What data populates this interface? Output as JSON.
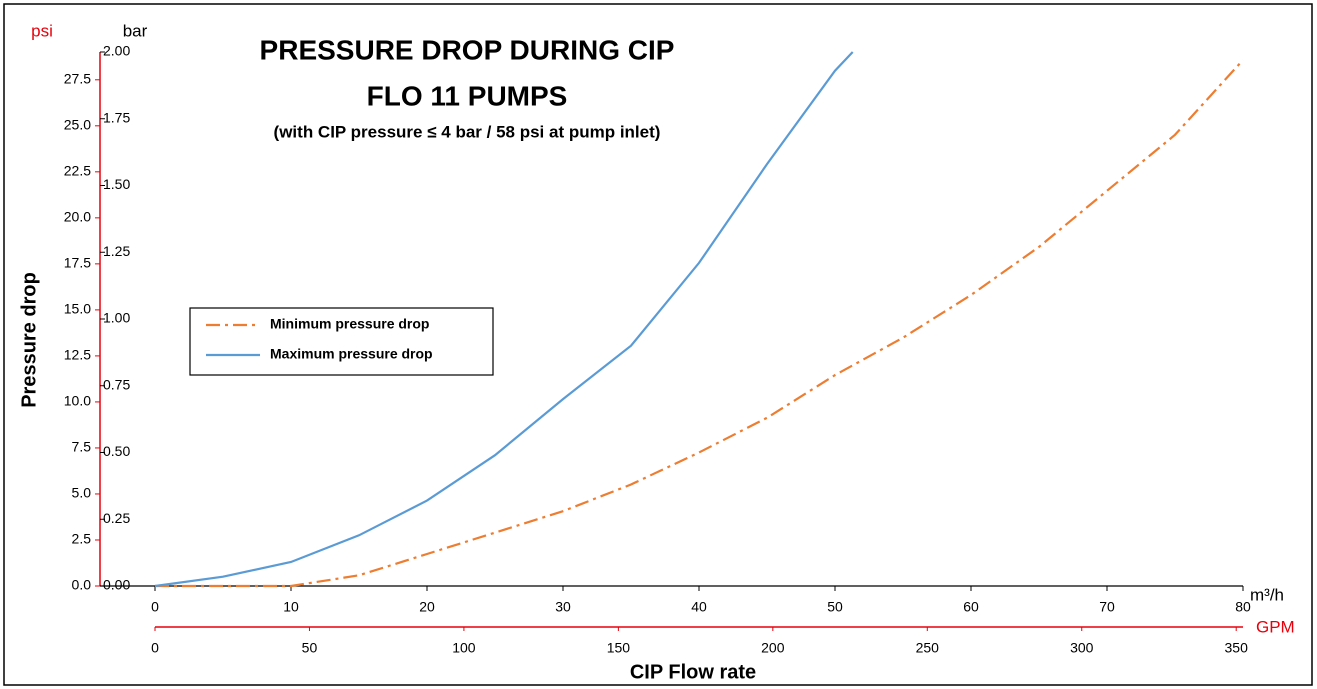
{
  "chart_data": {
    "type": "line",
    "title": [
      "PRESSURE DROP DURING CIP",
      "FLO 11 PUMPS"
    ],
    "subtitle": "(with CIP pressure ≤ 4 bar / 58 psi at pump inlet)",
    "ylabel": "Pressure drop",
    "xlabel": "CIP Flow rate",
    "yunit": "bar",
    "y2unit": "psi",
    "xunit": "m³/h",
    "x2unit": "GPM",
    "y2color": "#e8000b",
    "x2color": "#e8000b",
    "legend": "left",
    "xlim": [
      0,
      80
    ],
    "xticks": [
      0,
      10,
      20,
      30,
      40,
      50,
      60,
      70,
      80
    ],
    "x2lim": [
      0,
      352.2
    ],
    "x2ticks": [
      0,
      50,
      100,
      150,
      200,
      250,
      300,
      350
    ],
    "ylim": [
      0,
      2
    ],
    "yticks": [
      {
        "value": 0,
        "label": "0.00"
      },
      {
        "value": 0.25,
        "label": "0.25"
      },
      {
        "value": 0.5,
        "label": "0.50"
      },
      {
        "value": 0.75,
        "label": "0.75"
      },
      {
        "value": 1,
        "label": "1.00"
      },
      {
        "value": 1.25,
        "label": "1.25"
      },
      {
        "value": 1.5,
        "label": "1.50"
      },
      {
        "value": 1.75,
        "label": "1.75"
      },
      {
        "value": 2,
        "label": "2.00"
      }
    ],
    "y2lim": [
      0,
      29.01
    ],
    "y2ticks": [
      {
        "value": 0,
        "label": "0.0"
      },
      2.5,
      {
        "value": 5,
        "label": "5.0"
      },
      7.5,
      {
        "value": 10,
        "label": "10.0"
      },
      12.5,
      {
        "value": 15,
        "label": "15.0"
      },
      17.5,
      {
        "value": 20,
        "label": "20.0"
      },
      22.5,
      {
        "value": 25,
        "label": "25.0"
      },
      27.5
    ],
    "series": [
      {
        "name": "Minimum pressure drop",
        "color": "#ed7d31",
        "dash": "dash-dot",
        "x": [
          0,
          5,
          10,
          15,
          20,
          25,
          30,
          35,
          40,
          45,
          50,
          55,
          60,
          65,
          70,
          75,
          80
        ],
        "values": [
          0,
          0,
          0,
          0.04,
          0.12,
          0.2,
          0.28,
          0.38,
          0.5,
          0.63,
          0.79,
          0.93,
          1.09,
          1.27,
          1.48,
          1.69,
          1.97
        ]
      },
      {
        "name": "Maximum pressure drop",
        "color": "#5b9bd5",
        "dash": "solid",
        "x": [
          0,
          5,
          10,
          15,
          20,
          25,
          30,
          35,
          40,
          45,
          50,
          51.3
        ],
        "values": [
          0,
          0.035,
          0.09,
          0.19,
          0.32,
          0.49,
          0.7,
          0.9,
          1.21,
          1.58,
          1.93,
          2
        ]
      }
    ]
  }
}
